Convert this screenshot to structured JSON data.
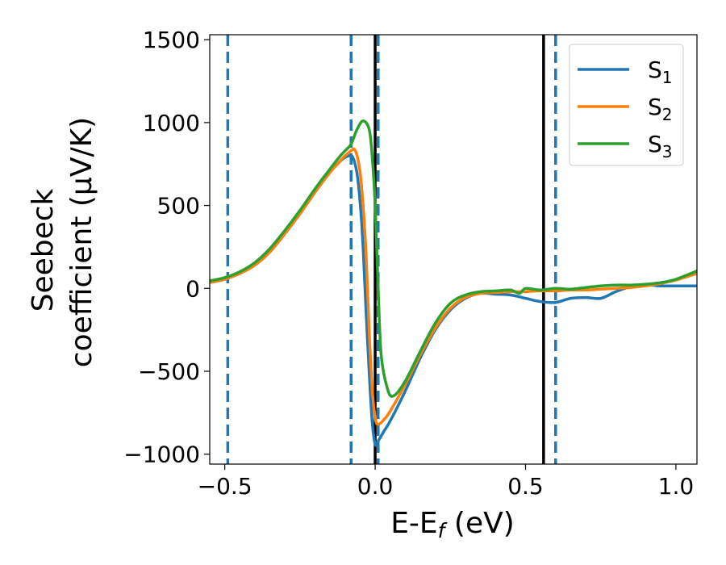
{
  "chart_data": {
    "type": "line",
    "xlabel_main": "E-E",
    "xlabel_sub": "f",
    "xlabel_tail": " (eV)",
    "ylabel_line1": "Seebeck",
    "ylabel_line2": "coefficient  (μV/K)",
    "xlim": [
      -0.55,
      1.07
    ],
    "ylim": [
      -1060,
      1530
    ],
    "xticks": [
      -0.5,
      0.0,
      0.5,
      1.0
    ],
    "xtick_labels": [
      "−0.5",
      "0.0",
      "0.5",
      "1.0"
    ],
    "yticks": [
      -1000,
      -500,
      0,
      500,
      1000,
      1500
    ],
    "ytick_labels": [
      "−1000",
      "−500",
      "0",
      "500",
      "1000",
      "1500"
    ],
    "grid": false,
    "legend_position": "top-right",
    "vlines_solid": [
      0.0,
      0.56
    ],
    "vlines_dashed": [
      -0.49,
      -0.08,
      0.01,
      0.6
    ],
    "vline_solid_color": "#000000",
    "vline_dashed_color": "#1f77b4",
    "series": [
      {
        "name": "S",
        "sub": "1",
        "color": "#1f77b4",
        "x": [
          -0.55,
          -0.5,
          -0.45,
          -0.4,
          -0.35,
          -0.3,
          -0.25,
          -0.2,
          -0.15,
          -0.12,
          -0.1,
          -0.08,
          -0.07,
          -0.06,
          -0.05,
          -0.04,
          -0.03,
          -0.02,
          -0.01,
          0.0,
          0.01,
          0.03,
          0.05,
          0.1,
          0.15,
          0.2,
          0.25,
          0.3,
          0.35,
          0.4,
          0.45,
          0.5,
          0.55,
          0.6,
          0.65,
          0.7,
          0.75,
          0.8,
          0.85,
          0.9,
          0.95,
          1.0,
          1.07
        ],
        "y": [
          35,
          55,
          90,
          140,
          220,
          330,
          450,
          580,
          700,
          760,
          790,
          800,
          770,
          690,
          520,
          250,
          -150,
          -500,
          -800,
          -940,
          -920,
          -860,
          -800,
          -620,
          -420,
          -250,
          -130,
          -60,
          -30,
          -35,
          -40,
          -60,
          -80,
          -85,
          -60,
          -55,
          -60,
          -20,
          10,
          20,
          15,
          15,
          15
        ]
      },
      {
        "name": "S",
        "sub": "2",
        "color": "#ff7f0e",
        "x": [
          -0.55,
          -0.5,
          -0.45,
          -0.4,
          -0.35,
          -0.3,
          -0.25,
          -0.2,
          -0.15,
          -0.12,
          -0.1,
          -0.08,
          -0.07,
          -0.06,
          -0.05,
          -0.04,
          -0.03,
          -0.02,
          -0.01,
          0.0,
          0.01,
          0.03,
          0.05,
          0.1,
          0.15,
          0.2,
          0.25,
          0.3,
          0.35,
          0.4,
          0.45,
          0.5,
          0.55,
          0.6,
          0.65,
          0.7,
          0.75,
          0.8,
          0.85,
          0.9,
          0.95,
          1.0,
          1.07
        ],
        "y": [
          35,
          55,
          90,
          140,
          220,
          330,
          450,
          580,
          700,
          760,
          800,
          830,
          840,
          800,
          700,
          500,
          200,
          -250,
          -600,
          -780,
          -820,
          -790,
          -740,
          -580,
          -400,
          -240,
          -120,
          -55,
          -30,
          -25,
          -20,
          -20,
          -15,
          -15,
          -10,
          -10,
          -5,
          0,
          5,
          15,
          30,
          50,
          90
        ]
      },
      {
        "name": "S",
        "sub": "3",
        "color": "#2ca02c",
        "x": [
          -0.55,
          -0.5,
          -0.45,
          -0.4,
          -0.35,
          -0.3,
          -0.25,
          -0.2,
          -0.15,
          -0.12,
          -0.1,
          -0.08,
          -0.06,
          -0.04,
          -0.02,
          -0.01,
          0.0,
          0.01,
          0.02,
          0.04,
          0.06,
          0.1,
          0.15,
          0.2,
          0.25,
          0.3,
          0.35,
          0.4,
          0.45,
          0.48,
          0.5,
          0.55,
          0.6,
          0.65,
          0.7,
          0.75,
          0.8,
          0.85,
          0.9,
          0.95,
          1.0,
          1.07
        ],
        "y": [
          45,
          65,
          100,
          155,
          240,
          350,
          470,
          600,
          720,
          790,
          830,
          870,
          960,
          1010,
          960,
          800,
          500,
          0,
          -400,
          -600,
          -650,
          -560,
          -380,
          -210,
          -90,
          -40,
          -20,
          -15,
          -10,
          -30,
          0,
          -10,
          0,
          -5,
          5,
          15,
          20,
          20,
          25,
          35,
          55,
          105
        ]
      }
    ]
  }
}
